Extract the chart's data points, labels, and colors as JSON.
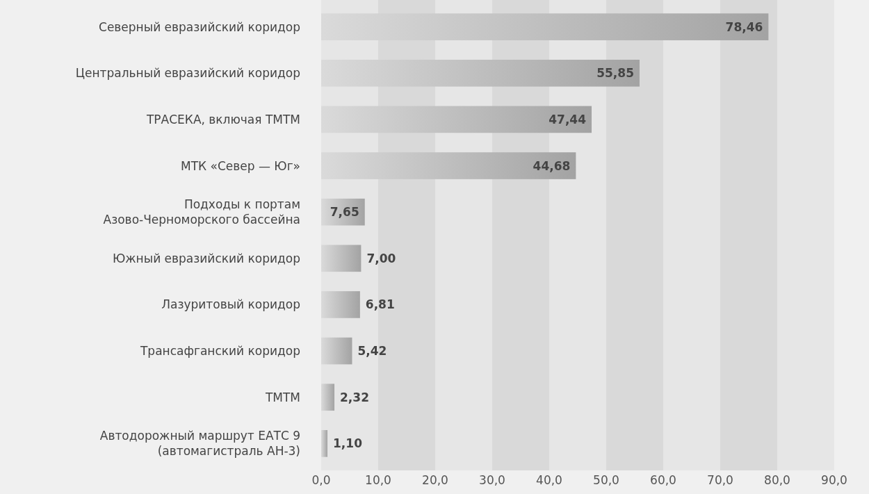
{
  "chart_data": {
    "type": "bar",
    "orientation": "horizontal",
    "categories": [
      "Северный евразийский коридор",
      "Центральный евразийский коридор",
      "ТРАСЕКА, включая ТМТМ",
      "МТК «Север — Юг»",
      "Подходы к портам\nАзово-Черноморского бассейна",
      "Южный евразийский коридор",
      "Лазуритовый коридор",
      "Трансафганский коридор",
      "ТМТМ",
      "Автодорожный маршрут ЕАТС 9\n(автомагистраль АН-3)"
    ],
    "values": [
      78.46,
      55.85,
      47.44,
      44.68,
      7.65,
      7.0,
      6.81,
      5.42,
      2.32,
      1.1
    ],
    "value_labels": [
      "78,46",
      "55,85",
      "47,44",
      "44,68",
      "7,65",
      "7,00",
      "6,81",
      "5,42",
      "2,32",
      "1,10"
    ],
    "color": "#a3a3a3",
    "xlim": [
      0,
      90
    ],
    "xticks": [
      {
        "value": 0,
        "label": "0,0"
      },
      {
        "value": 10,
        "label": "10,0"
      },
      {
        "value": 20,
        "label": "20,0"
      },
      {
        "value": 30,
        "label": "30,0"
      },
      {
        "value": 40,
        "label": "40,0"
      },
      {
        "value": 50,
        "label": "50,0"
      },
      {
        "value": 60,
        "label": "60,0"
      },
      {
        "value": 70,
        "label": "70,0"
      },
      {
        "value": 80,
        "label": "80,0"
      },
      {
        "value": 90,
        "label": "90,0"
      }
    ]
  }
}
